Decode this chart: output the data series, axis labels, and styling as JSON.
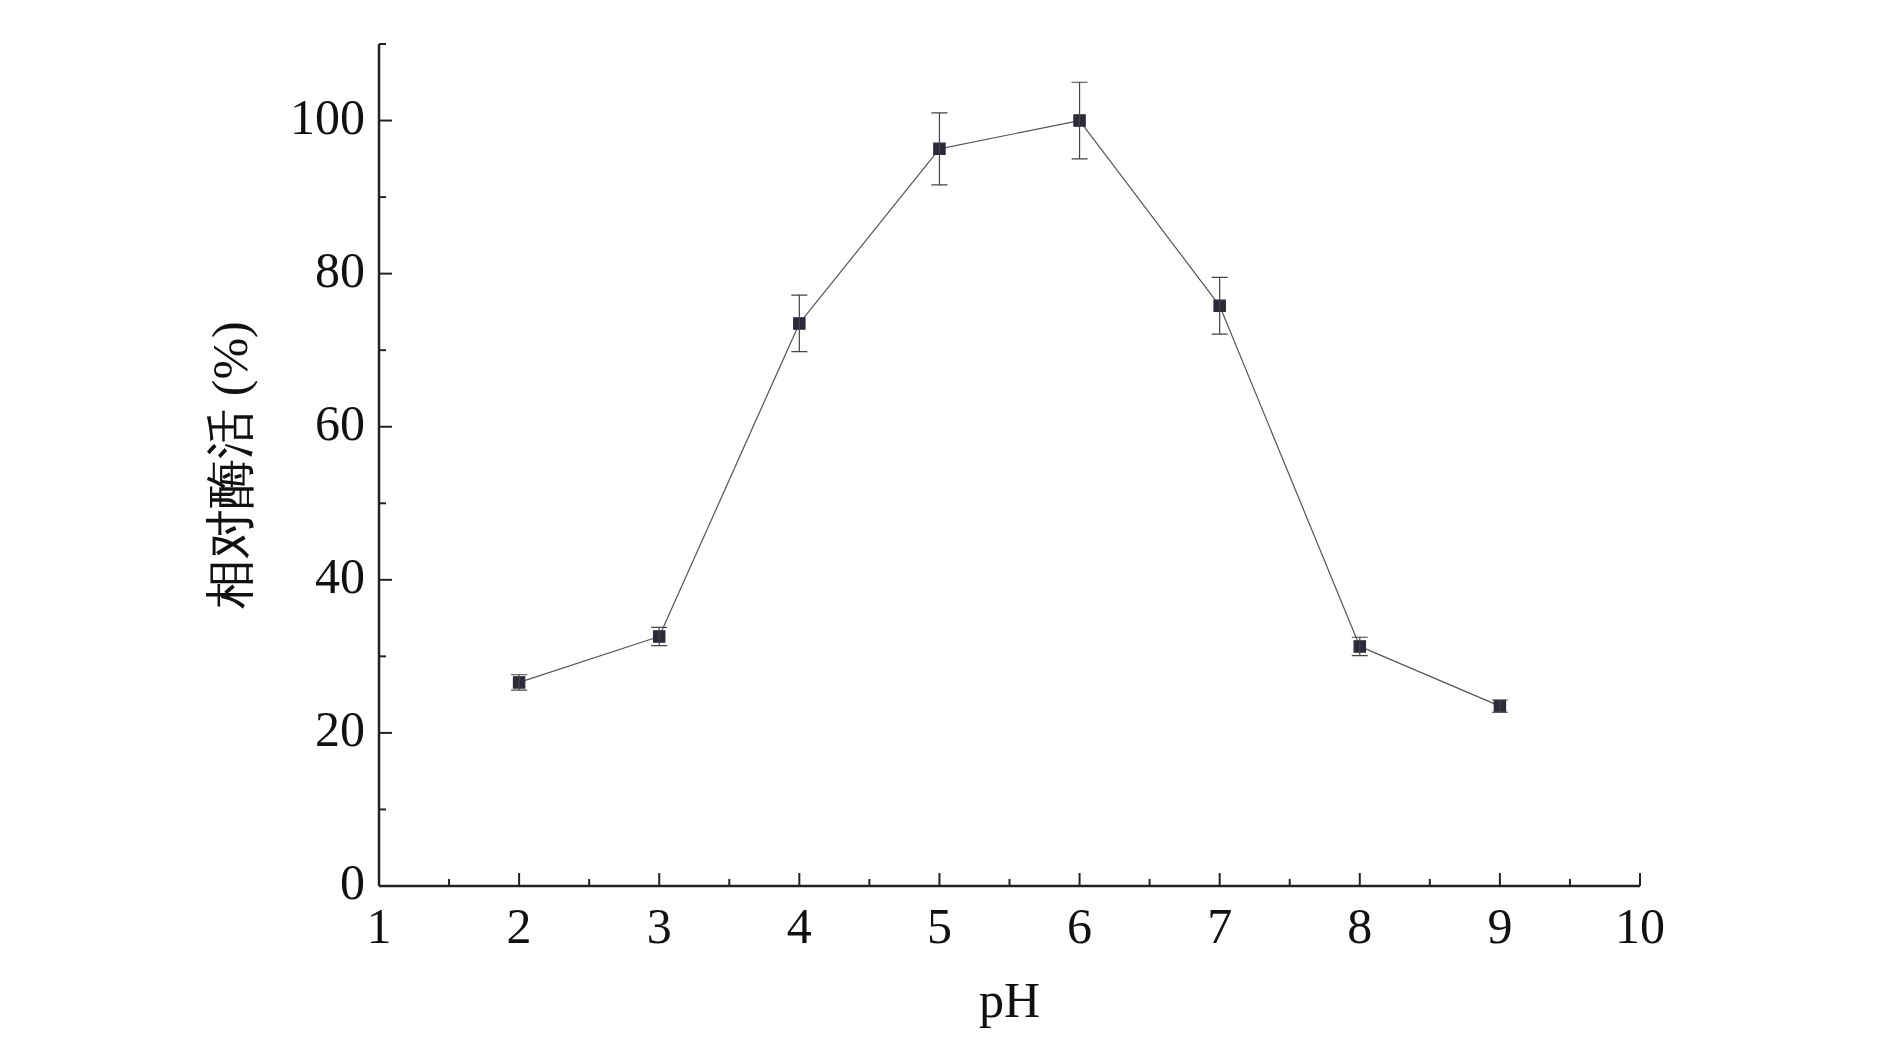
{
  "chart_data": {
    "type": "line",
    "xlabel": "pH",
    "ylabel": "相对酶活 (%)",
    "x": [
      2,
      3,
      4,
      5,
      6,
      7,
      8,
      9
    ],
    "series": [
      {
        "color": "#2b2b3a",
        "values": [
          26.6,
          32.6,
          73.5,
          96.3,
          100,
          75.8,
          31.3,
          23.5
        ],
        "errors": [
          1,
          1.2,
          3.7,
          4.7,
          5,
          3.7,
          1.2,
          0.8
        ]
      }
    ],
    "xlim": [
      1,
      10
    ],
    "xticks": [
      1,
      {
        "value": 1.5,
        "label": null
      },
      2,
      {
        "value": 2.5,
        "label": null
      },
      3,
      {
        "value": 3.5,
        "label": null
      },
      4,
      {
        "value": 4.5,
        "label": null
      },
      5,
      {
        "value": 5.5,
        "label": null
      },
      6,
      {
        "value": 6.5,
        "label": null
      },
      7,
      {
        "value": 7.5,
        "label": null
      },
      8,
      {
        "value": 8.5,
        "label": null
      },
      9,
      {
        "value": 9.5,
        "label": null
      },
      10
    ],
    "ylim": [
      0,
      110
    ],
    "yticks": [
      0,
      {
        "value": 10,
        "label": null
      },
      20,
      {
        "value": 30,
        "label": null
      },
      40,
      {
        "value": 50,
        "label": null
      },
      60,
      {
        "value": 70,
        "label": null
      },
      80,
      {
        "value": 90,
        "label": null
      },
      100,
      {
        "value": 110,
        "label": null
      }
    ],
    "grid": false,
    "legend": false,
    "marker": "square",
    "line_style": "solid"
  }
}
